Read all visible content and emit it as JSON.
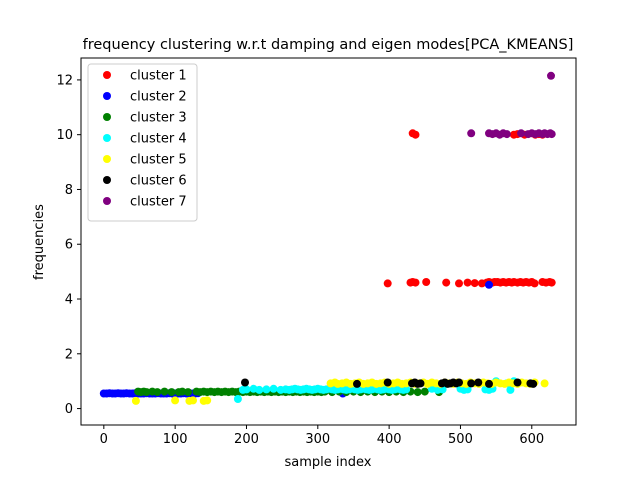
{
  "chart_data": {
    "type": "scatter",
    "title": "frequency clustering w.r.t damping and eigen modes[PCA_KMEANS]",
    "xlabel": "sample index",
    "ylabel": "frequencies",
    "xlim": [
      -32,
      662
    ],
    "ylim": [
      -0.6,
      12.8
    ],
    "xticks": [
      0,
      100,
      200,
      300,
      400,
      500,
      600
    ],
    "yticks": [
      0,
      2,
      4,
      6,
      8,
      10,
      12
    ],
    "grid": false,
    "legend_position": "top-left",
    "series": [
      {
        "name": "cluster 1",
        "color": "#ff0000",
        "points": [
          [
            433,
            10.05
          ],
          [
            437,
            10.0
          ],
          [
            575,
            10.0
          ],
          [
            580,
            10.02
          ],
          [
            590,
            10.0
          ],
          [
            605,
            10.0
          ],
          [
            610,
            10.02
          ],
          [
            615,
            10.0
          ],
          [
            398,
            4.57
          ],
          [
            430,
            4.6
          ],
          [
            433,
            4.62
          ],
          [
            437,
            4.6
          ],
          [
            452,
            4.62
          ],
          [
            480,
            4.6
          ],
          [
            498,
            4.57
          ],
          [
            510,
            4.6
          ],
          [
            520,
            4.58
          ],
          [
            530,
            4.57
          ],
          [
            537,
            4.6
          ],
          [
            540,
            4.62
          ],
          [
            545,
            4.6
          ],
          [
            548,
            4.62
          ],
          [
            552,
            4.62
          ],
          [
            556,
            4.6
          ],
          [
            560,
            4.62
          ],
          [
            564,
            4.6
          ],
          [
            568,
            4.62
          ],
          [
            572,
            4.6
          ],
          [
            575,
            4.62
          ],
          [
            580,
            4.6
          ],
          [
            584,
            4.62
          ],
          [
            588,
            4.6
          ],
          [
            592,
            4.62
          ],
          [
            596,
            4.6
          ],
          [
            600,
            4.62
          ],
          [
            604,
            4.57
          ],
          [
            615,
            4.62
          ],
          [
            620,
            4.6
          ],
          [
            625,
            4.62
          ],
          [
            628,
            4.6
          ]
        ]
      },
      {
        "name": "cluster 2",
        "color": "#0000ff",
        "points": [
          [
            0,
            0.55
          ],
          [
            4,
            0.55
          ],
          [
            8,
            0.56
          ],
          [
            12,
            0.55
          ],
          [
            16,
            0.55
          ],
          [
            20,
            0.56
          ],
          [
            24,
            0.55
          ],
          [
            28,
            0.55
          ],
          [
            32,
            0.56
          ],
          [
            36,
            0.55
          ],
          [
            40,
            0.55
          ],
          [
            44,
            0.56
          ],
          [
            48,
            0.55
          ],
          [
            52,
            0.55
          ],
          [
            56,
            0.55
          ],
          [
            60,
            0.56
          ],
          [
            64,
            0.55
          ],
          [
            68,
            0.55
          ],
          [
            72,
            0.55
          ],
          [
            76,
            0.56
          ],
          [
            80,
            0.55
          ],
          [
            84,
            0.55
          ],
          [
            88,
            0.55
          ],
          [
            92,
            0.56
          ],
          [
            96,
            0.55
          ],
          [
            100,
            0.55
          ],
          [
            104,
            0.55
          ],
          [
            108,
            0.55
          ],
          [
            112,
            0.56
          ],
          [
            116,
            0.55
          ],
          [
            120,
            0.55
          ],
          [
            124,
            0.55
          ],
          [
            128,
            0.55
          ],
          [
            132,
            0.56
          ],
          [
            335,
            0.55
          ],
          [
            540,
            4.52
          ]
        ]
      },
      {
        "name": "cluster 3",
        "color": "#008000",
        "points": [
          [
            48,
            0.62
          ],
          [
            52,
            0.6
          ],
          [
            56,
            0.62
          ],
          [
            60,
            0.6
          ],
          [
            68,
            0.62
          ],
          [
            75,
            0.6
          ],
          [
            85,
            0.62
          ],
          [
            95,
            0.6
          ],
          [
            105,
            0.6
          ],
          [
            110,
            0.62
          ],
          [
            118,
            0.6
          ],
          [
            130,
            0.62
          ],
          [
            135,
            0.6
          ],
          [
            140,
            0.62
          ],
          [
            145,
            0.6
          ],
          [
            150,
            0.62
          ],
          [
            155,
            0.6
          ],
          [
            160,
            0.62
          ],
          [
            165,
            0.6
          ],
          [
            170,
            0.62
          ],
          [
            175,
            0.6
          ],
          [
            180,
            0.62
          ],
          [
            185,
            0.6
          ],
          [
            190,
            0.62
          ],
          [
            195,
            0.6
          ],
          [
            200,
            0.62
          ],
          [
            205,
            0.6
          ],
          [
            210,
            0.62
          ],
          [
            215,
            0.6
          ],
          [
            220,
            0.62
          ],
          [
            225,
            0.6
          ],
          [
            230,
            0.62
          ],
          [
            235,
            0.6
          ],
          [
            240,
            0.62
          ],
          [
            245,
            0.6
          ],
          [
            250,
            0.62
          ],
          [
            255,
            0.6
          ],
          [
            260,
            0.62
          ],
          [
            265,
            0.6
          ],
          [
            270,
            0.62
          ],
          [
            275,
            0.6
          ],
          [
            280,
            0.62
          ],
          [
            285,
            0.6
          ],
          [
            290,
            0.62
          ],
          [
            295,
            0.6
          ],
          [
            300,
            0.62
          ],
          [
            305,
            0.6
          ],
          [
            310,
            0.62
          ],
          [
            320,
            0.6
          ],
          [
            330,
            0.62
          ],
          [
            340,
            0.6
          ],
          [
            350,
            0.62
          ],
          [
            360,
            0.6
          ],
          [
            370,
            0.62
          ],
          [
            380,
            0.6
          ],
          [
            390,
            0.62
          ],
          [
            400,
            0.6
          ],
          [
            410,
            0.62
          ],
          [
            420,
            0.6
          ],
          [
            430,
            0.62
          ],
          [
            440,
            0.6
          ],
          [
            450,
            0.62
          ],
          [
            470,
            0.6
          ]
        ]
      },
      {
        "name": "cluster 4",
        "color": "#00ffff",
        "points": [
          [
            188,
            0.35
          ],
          [
            195,
            0.68
          ],
          [
            200,
            0.7
          ],
          [
            210,
            0.72
          ],
          [
            218,
            0.68
          ],
          [
            228,
            0.7
          ],
          [
            238,
            0.72
          ],
          [
            248,
            0.68
          ],
          [
            255,
            0.7
          ],
          [
            260,
            0.68
          ],
          [
            264,
            0.7
          ],
          [
            268,
            0.72
          ],
          [
            272,
            0.7
          ],
          [
            276,
            0.68
          ],
          [
            280,
            0.7
          ],
          [
            284,
            0.72
          ],
          [
            288,
            0.7
          ],
          [
            292,
            0.68
          ],
          [
            296,
            0.7
          ],
          [
            300,
            0.72
          ],
          [
            304,
            0.7
          ],
          [
            308,
            0.68
          ],
          [
            312,
            0.7
          ],
          [
            316,
            0.72
          ],
          [
            320,
            0.7
          ],
          [
            324,
            0.68
          ],
          [
            328,
            0.7
          ],
          [
            332,
            0.72
          ],
          [
            336,
            0.7
          ],
          [
            340,
            0.68
          ],
          [
            344,
            0.7
          ],
          [
            348,
            0.72
          ],
          [
            352,
            0.7
          ],
          [
            356,
            0.68
          ],
          [
            360,
            0.7
          ],
          [
            364,
            0.72
          ],
          [
            368,
            0.7
          ],
          [
            372,
            0.68
          ],
          [
            376,
            0.7
          ],
          [
            380,
            0.72
          ],
          [
            384,
            0.7
          ],
          [
            388,
            0.68
          ],
          [
            392,
            0.7
          ],
          [
            396,
            0.72
          ],
          [
            400,
            0.7
          ],
          [
            404,
            0.68
          ],
          [
            408,
            0.7
          ],
          [
            412,
            0.72
          ],
          [
            416,
            0.7
          ],
          [
            420,
            0.68
          ],
          [
            424,
            0.7
          ],
          [
            460,
            0.72
          ],
          [
            468,
            0.68
          ],
          [
            475,
            0.7
          ],
          [
            500,
            0.72
          ],
          [
            505,
            0.68
          ],
          [
            510,
            0.7
          ],
          [
            535,
            0.7
          ],
          [
            540,
            0.68
          ],
          [
            545,
            0.72
          ],
          [
            550,
            1.0
          ],
          [
            565,
            0.92
          ],
          [
            570,
            0.68
          ],
          [
            575,
            1.0
          ]
        ]
      },
      {
        "name": "cluster 5",
        "color": "#ffff00",
        "points": [
          [
            45,
            0.28
          ],
          [
            100,
            0.3
          ],
          [
            120,
            0.28
          ],
          [
            125,
            0.3
          ],
          [
            140,
            0.28
          ],
          [
            145,
            0.3
          ],
          [
            318,
            0.92
          ],
          [
            324,
            0.95
          ],
          [
            328,
            0.9
          ],
          [
            334,
            0.92
          ],
          [
            340,
            0.95
          ],
          [
            346,
            0.9
          ],
          [
            352,
            0.92
          ],
          [
            358,
            0.95
          ],
          [
            364,
            0.9
          ],
          [
            370,
            0.92
          ],
          [
            376,
            0.95
          ],
          [
            382,
            0.9
          ],
          [
            388,
            0.92
          ],
          [
            394,
            0.95
          ],
          [
            400,
            0.9
          ],
          [
            406,
            0.92
          ],
          [
            412,
            0.95
          ],
          [
            418,
            0.9
          ],
          [
            424,
            0.92
          ],
          [
            430,
            0.95
          ],
          [
            436,
            0.9
          ],
          [
            442,
            0.92
          ],
          [
            448,
            0.95
          ],
          [
            454,
            0.9
          ],
          [
            460,
            0.95
          ],
          [
            466,
            0.92
          ],
          [
            472,
            0.9
          ],
          [
            478,
            0.95
          ],
          [
            484,
            0.92
          ],
          [
            490,
            0.9
          ],
          [
            496,
            0.95
          ],
          [
            502,
            0.92
          ],
          [
            508,
            0.9
          ],
          [
            514,
            0.95
          ],
          [
            520,
            0.92
          ],
          [
            526,
            0.9
          ],
          [
            532,
            0.95
          ],
          [
            538,
            0.92
          ],
          [
            544,
            0.9
          ],
          [
            550,
            0.95
          ],
          [
            556,
            0.92
          ],
          [
            562,
            0.9
          ],
          [
            568,
            0.95
          ],
          [
            574,
            0.92
          ],
          [
            580,
            0.9
          ],
          [
            586,
            0.95
          ],
          [
            592,
            0.92
          ],
          [
            598,
            0.9
          ],
          [
            604,
            0.95
          ],
          [
            618,
            0.92
          ]
        ]
      },
      {
        "name": "cluster 6",
        "color": "#000000",
        "points": [
          [
            198,
            0.95
          ],
          [
            355,
            0.9
          ],
          [
            398,
            0.95
          ],
          [
            432,
            0.92
          ],
          [
            436,
            0.95
          ],
          [
            440,
            0.9
          ],
          [
            444,
            0.92
          ],
          [
            474,
            0.92
          ],
          [
            478,
            0.95
          ],
          [
            482,
            0.9
          ],
          [
            486,
            0.92
          ],
          [
            490,
            0.95
          ],
          [
            494,
            0.92
          ],
          [
            498,
            0.95
          ],
          [
            515,
            0.92
          ],
          [
            525,
            0.95
          ],
          [
            540,
            0.9
          ],
          [
            580,
            0.95
          ],
          [
            598,
            0.92
          ],
          [
            602,
            0.9
          ]
        ]
      },
      {
        "name": "cluster 7",
        "color": "#800080",
        "points": [
          [
            515,
            10.05
          ],
          [
            540,
            10.05
          ],
          [
            545,
            10.02
          ],
          [
            550,
            10.05
          ],
          [
            555,
            10.0
          ],
          [
            560,
            10.05
          ],
          [
            565,
            10.02
          ],
          [
            585,
            10.05
          ],
          [
            595,
            10.02
          ],
          [
            600,
            10.05
          ],
          [
            605,
            10.02
          ],
          [
            610,
            10.05
          ],
          [
            615,
            10.02
          ],
          [
            618,
            10.05
          ],
          [
            622,
            10.02
          ],
          [
            626,
            10.05
          ],
          [
            628,
            10.02
          ],
          [
            627,
            12.15
          ]
        ]
      }
    ]
  }
}
